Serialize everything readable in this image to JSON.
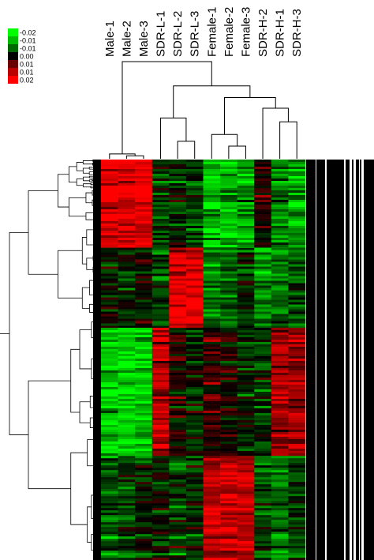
{
  "chart_data": {
    "type": "heatmap",
    "columns": [
      "Male-1",
      "Male-2",
      "Male-3",
      "SDR-L-1",
      "SDR-L-2",
      "SDR-L-3",
      "Female-1",
      "Female-2",
      "Female-3",
      "SDR-H-2",
      "SDR-H-1",
      "SDR-H-3"
    ],
    "color_scale": {
      "labels": [
        "-0.02",
        "-0.01",
        "-0.01",
        "0.00",
        "0.01",
        "0.01",
        "0.02"
      ],
      "colors": [
        "#00ff00",
        "#00bb00",
        "#006a00",
        "#000000",
        "#6a0000",
        "#bb0000",
        "#ff0000"
      ],
      "min": -0.02,
      "max": 0.02
    },
    "column_dendrogram": {
      "merges": [
        {
          "left": [
            "Male-1"
          ],
          "right": [
            "Male-2",
            "Male-3"
          ],
          "height": 0.05
        },
        {
          "left": [
            "Male-2"
          ],
          "right": [
            "Male-3"
          ],
          "height": 0.03
        },
        {
          "left": [
            "SDR-L-2"
          ],
          "right": [
            "SDR-L-3"
          ],
          "height": 0.18
        },
        {
          "left": [
            "SDR-L-1"
          ],
          "right": [
            "SDR-L-2",
            "SDR-L-3"
          ],
          "height": 0.42
        },
        {
          "left": [
            "Female-1"
          ],
          "right": [
            "Female-2",
            "Female-3"
          ],
          "height": 0.25
        },
        {
          "left": [
            "Female-2"
          ],
          "right": [
            "Female-3"
          ],
          "height": 0.13
        },
        {
          "left": [
            "SDR-H-1"
          ],
          "right": [
            "SDR-H-3"
          ],
          "height": 0.38
        },
        {
          "left": [
            "SDR-H-2"
          ],
          "right": [
            "SDR-H-1",
            "SDR-H-3"
          ],
          "height": 0.52
        },
        {
          "left": [
            "Female-1",
            "Female-2",
            "Female-3"
          ],
          "right": [
            "SDR-H-2",
            "SDR-H-1",
            "SDR-H-3"
          ],
          "height": 0.63
        },
        {
          "left": [
            "SDR-L-1",
            "SDR-L-2",
            "SDR-L-3"
          ],
          "right": [
            "Female-1",
            "Female-2",
            "Female-3",
            "SDR-H-2",
            "SDR-H-1",
            "SDR-H-3"
          ],
          "height": 0.75
        },
        {
          "left": [
            "Male-1",
            "Male-2",
            "Male-3"
          ],
          "right": [
            "SDR-L-1",
            "SDR-L-2",
            "SDR-L-3",
            "Female-1",
            "Female-2",
            "Female-3",
            "SDR-H-2",
            "SDR-H-1",
            "SDR-H-3"
          ],
          "height": 1.0
        }
      ]
    },
    "row_blocks": [
      {
        "rows": 0.22,
        "means": [
          0.018,
          0.018,
          0.017,
          -0.004,
          -0.003,
          -0.005,
          -0.015,
          -0.014,
          -0.013,
          0.001,
          -0.01,
          -0.012
        ]
      },
      {
        "rows": 0.2,
        "means": [
          -0.002,
          -0.003,
          0.0,
          -0.006,
          0.018,
          0.019,
          -0.01,
          -0.008,
          -0.004,
          -0.012,
          -0.008,
          -0.007
        ]
      },
      {
        "rows": 0.32,
        "means": [
          -0.016,
          -0.016,
          -0.015,
          0.014,
          0.002,
          -0.002,
          0.004,
          0.002,
          -0.002,
          -0.004,
          0.013,
          0.012
        ]
      },
      {
        "rows": 0.26,
        "means": [
          -0.006,
          -0.005,
          -0.003,
          -0.002,
          -0.004,
          -0.003,
          0.016,
          0.016,
          0.015,
          -0.006,
          -0.008,
          -0.005
        ]
      }
    ],
    "right_panel": "vertical black/white row-label stripes (unreadable)"
  }
}
